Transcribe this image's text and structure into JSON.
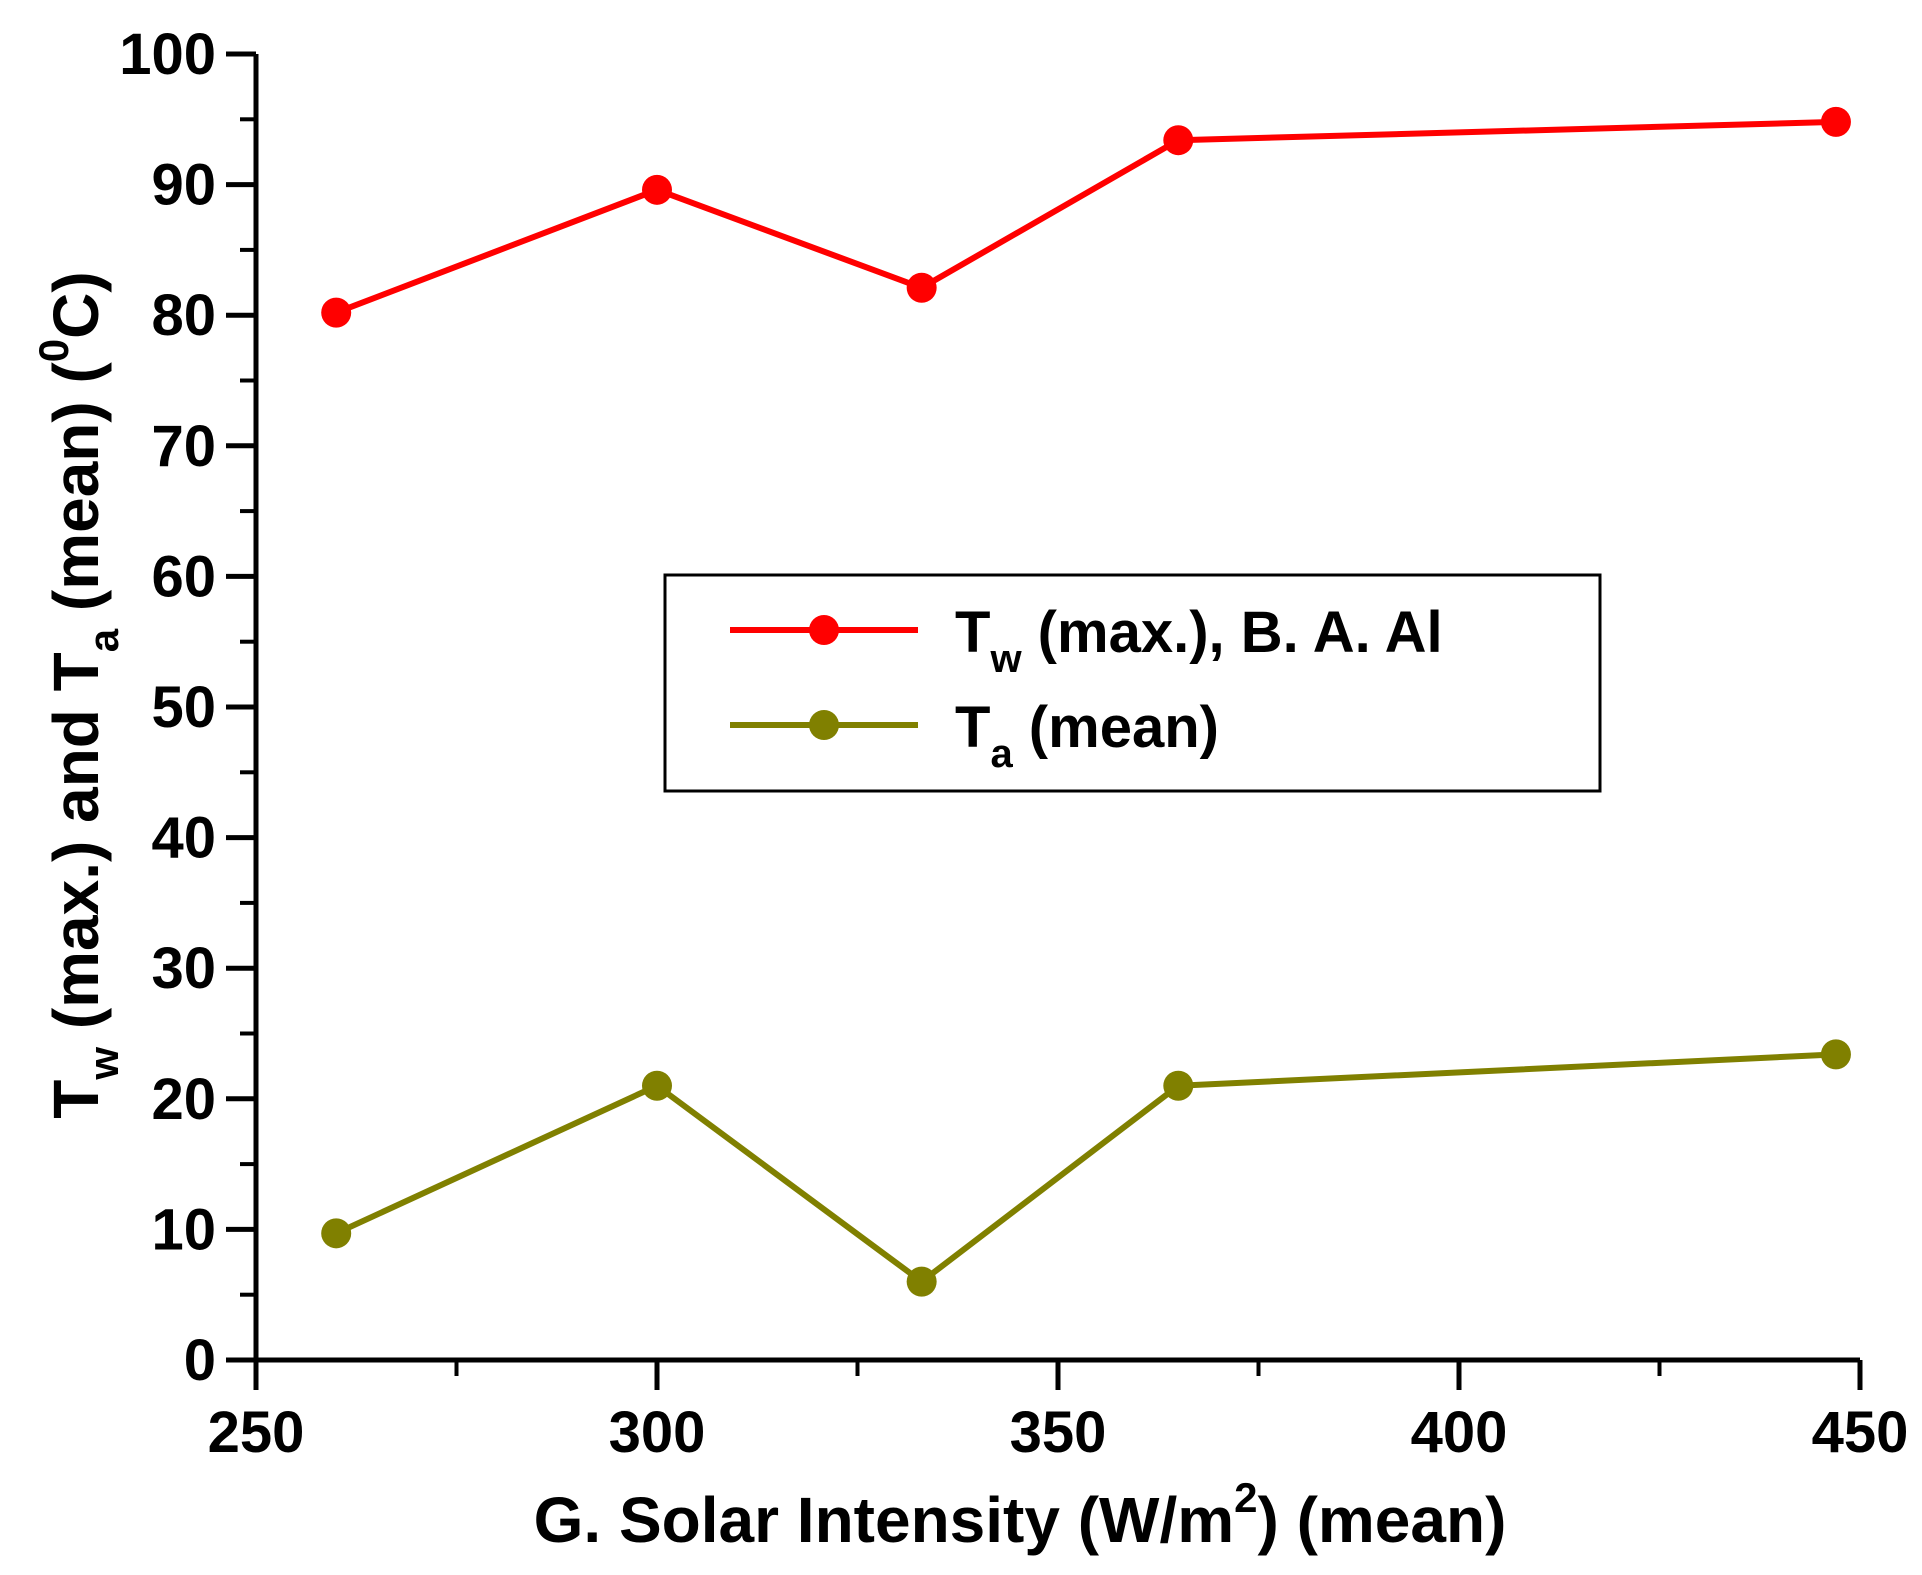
{
  "chart_data": {
    "type": "line",
    "title": "",
    "xlabel": {
      "main": "G. Solar Intensity (W/m",
      "sup": "2",
      "tail": ") (mean)"
    },
    "ylabel": {
      "p1": "T",
      "sub1": "w",
      "p2": " (max.) and T",
      "sub2": "a",
      "p3": " (mean) (",
      "sup": "0",
      "p4": "C)"
    },
    "xlim": [
      250,
      450
    ],
    "ylim": [
      0,
      100
    ],
    "x_ticks": [
      250,
      300,
      350,
      400,
      450
    ],
    "x_tick_labels": [
      "250",
      "300",
      "350",
      "400",
      "450"
    ],
    "y_ticks": [
      0,
      10,
      20,
      30,
      40,
      50,
      60,
      70,
      80,
      90,
      100
    ],
    "y_tick_labels": [
      "0",
      "10",
      "20",
      "30",
      "40",
      "50",
      "60",
      "70",
      "80",
      "90",
      "100"
    ],
    "grid": false,
    "legend_position": "center",
    "series": [
      {
        "name": "Tw (max.), B. A. Al",
        "label_main": "T",
        "label_sub": "w",
        "label_rest": " (max.), B. A. Al",
        "color": "#ff0000",
        "x": [
          260,
          300,
          333,
          365,
          447
        ],
        "y": [
          80.2,
          89.6,
          82.1,
          93.4,
          94.8
        ]
      },
      {
        "name": "Ta (mean)",
        "label_main": "T",
        "label_sub": "a",
        "label_rest": " (mean)",
        "color": "#808000",
        "x": [
          260,
          300,
          333,
          365,
          447
        ],
        "y": [
          9.7,
          21.0,
          6.0,
          21.0,
          23.4
        ]
      }
    ]
  }
}
